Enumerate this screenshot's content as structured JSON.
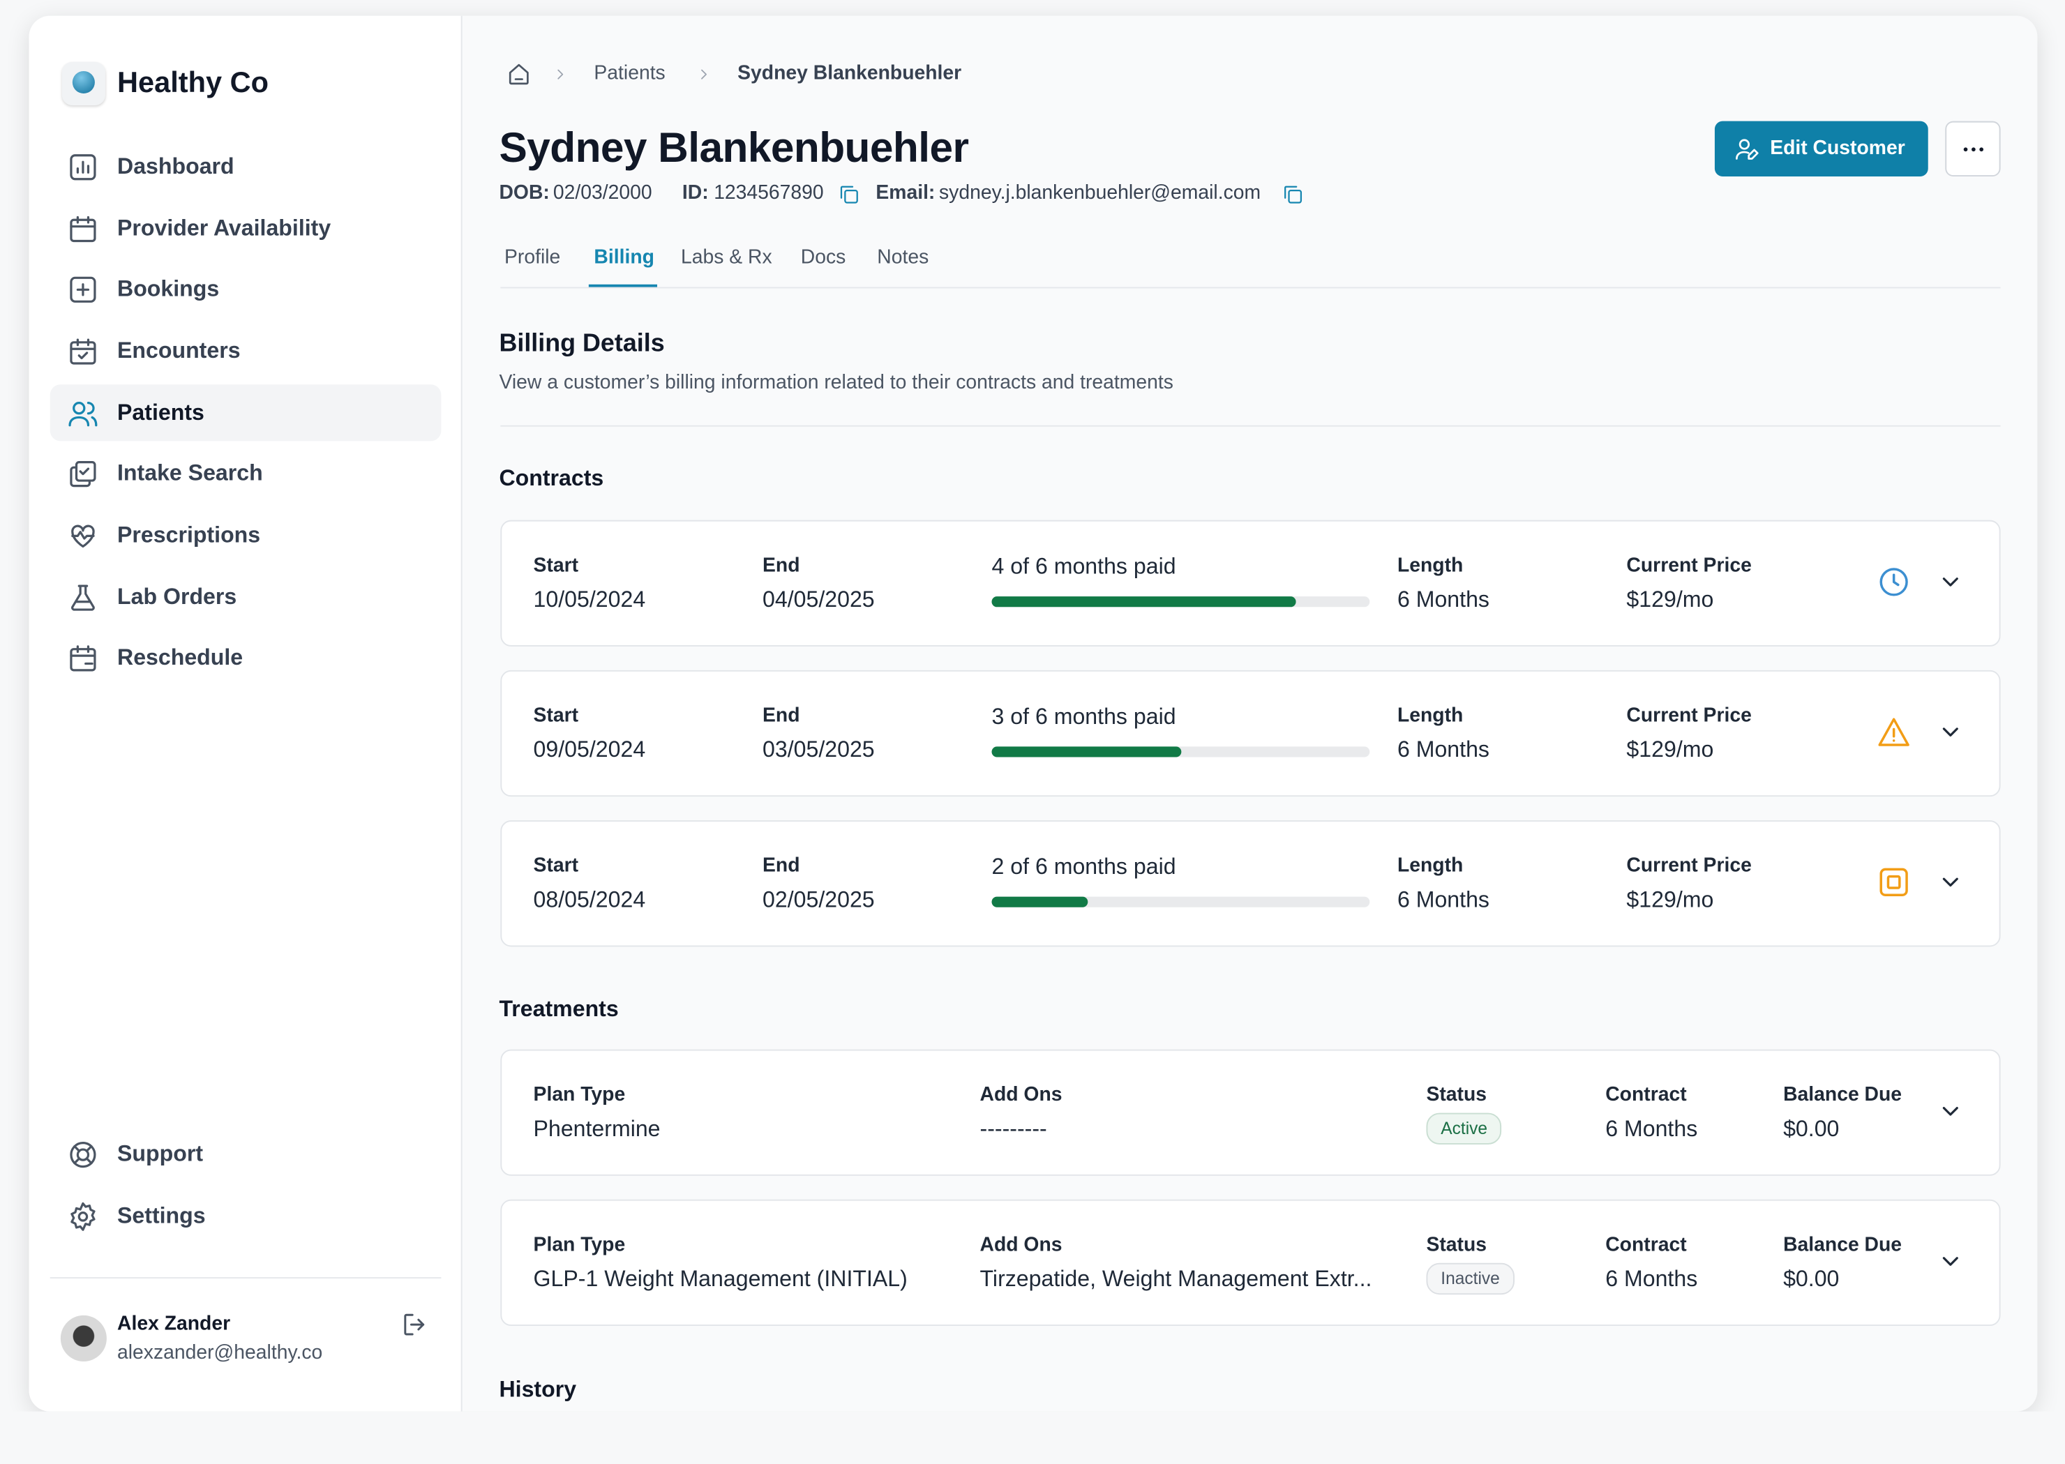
{
  "sidebar": {
    "brand": "Healthy Co",
    "nav": [
      "Dashboard",
      "Provider Availability",
      "Bookings",
      "Encounters",
      "Patients",
      "Intake Search",
      "Prescriptions",
      "Lab Orders",
      "Reschedule"
    ],
    "footer_nav": [
      "Support",
      "Settings"
    ],
    "user": {
      "name": "Alex Zander",
      "email": "alexzander@healthy.co"
    }
  },
  "breadcrumb": [
    "Patients",
    "Sydney Blankenbuehler"
  ],
  "header": {
    "name": "Sydney Blankenbuehler",
    "dob_label": "DOB:",
    "dob": "02/03/2000",
    "id_label": "ID:",
    "id": "1234567890",
    "email_label": "Email:",
    "email": "sydney.j.blankenbuehler@email.com",
    "edit_button": "Edit Customer"
  },
  "tabs": [
    "Profile",
    "Billing",
    "Labs & Rx",
    "Docs",
    "Notes"
  ],
  "billing": {
    "title": "Billing Details",
    "description": "View a customer’s billing information related to their contracts and treatments"
  },
  "contracts": {
    "title": "Contracts",
    "columns": [
      "Start",
      "End",
      "Length",
      "Current Price"
    ],
    "rows": [
      {
        "start": "10/05/2024",
        "end": "04/05/2025",
        "paid": "4 of 6 months paid",
        "length": "6 Months",
        "price": "$129/mo"
      },
      {
        "start": "09/05/2024",
        "end": "03/05/2025",
        "paid": "3 of 6 months paid",
        "length": "6 Months",
        "price": "$129/mo"
      },
      {
        "start": "08/05/2024",
        "end": "02/05/2025",
        "paid": "2 of 6 months paid",
        "length": "6 Months",
        "price": "$129/mo"
      }
    ]
  },
  "treatments": {
    "title": "Treatments",
    "columns": [
      "Plan Type",
      "Add Ons",
      "Status",
      "Contract",
      "Balance Due"
    ],
    "rows": [
      {
        "plan": "Phentermine",
        "add_ons": "---------",
        "status": "Active",
        "contract": "6 Months",
        "balance": "$0.00"
      },
      {
        "plan": "GLP-1 Weight Management (INITIAL)",
        "add_ons": "Tirzepatide, Weight Management Extr...",
        "status": "Inactive",
        "contract": "6 Months",
        "balance": "$0.00"
      }
    ]
  },
  "history": {
    "title": "History"
  }
}
